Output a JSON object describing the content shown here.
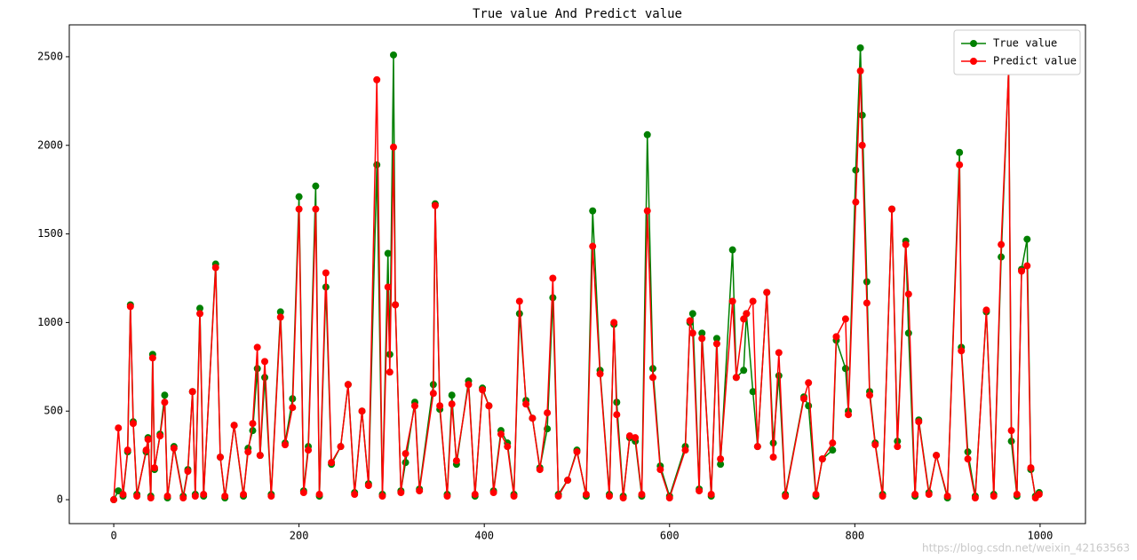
{
  "chart_data": {
    "type": "line",
    "title": "True value And Predict value",
    "x": [
      0,
      5,
      10,
      15,
      18,
      21,
      25,
      35,
      37,
      40,
      42,
      44,
      50,
      55,
      58,
      65,
      75,
      80,
      85,
      88,
      93,
      97,
      110,
      115,
      120,
      130,
      140,
      145,
      150,
      155,
      158,
      163,
      170,
      180,
      185,
      193,
      200,
      205,
      210,
      218,
      222,
      229,
      235,
      245,
      253,
      260,
      268,
      275,
      284,
      290,
      296,
      298,
      302,
      304,
      310,
      315,
      325,
      330,
      345,
      347,
      352,
      360,
      365,
      370,
      383,
      390,
      398,
      405,
      410,
      418,
      425,
      432,
      438,
      445,
      452,
      460,
      468,
      474,
      480,
      490,
      500,
      510,
      517,
      525,
      535,
      540,
      543,
      550,
      557,
      563,
      570,
      576,
      582,
      590,
      600,
      617,
      622,
      625,
      632,
      635,
      645,
      651,
      655,
      668,
      672,
      680,
      683,
      690,
      695,
      705,
      712,
      718,
      725,
      745,
      750,
      758,
      765,
      776,
      780,
      790,
      793,
      801,
      806,
      808,
      813,
      816,
      822,
      830,
      840,
      846,
      855,
      858,
      865,
      869,
      880,
      888,
      900,
      913,
      915,
      922,
      930,
      942,
      950,
      958,
      966,
      969,
      975,
      980,
      986,
      990,
      995,
      999
    ],
    "series": [
      {
        "name": "True value",
        "color": "#008000",
        "values": [
          0,
          50,
          20,
          270,
          1100,
          440,
          30,
          270,
          350,
          20,
          820,
          170,
          370,
          590,
          10,
          300,
          20,
          170,
          610,
          30,
          1080,
          20,
          1330,
          240,
          10,
          420,
          20,
          290,
          390,
          740,
          250,
          690,
          30,
          1060,
          320,
          570,
          1710,
          50,
          300,
          1770,
          20,
          1200,
          200,
          300,
          650,
          40,
          500,
          90,
          1890,
          30,
          1390,
          820,
          2510,
          1100,
          50,
          210,
          550,
          60,
          650,
          1670,
          510,
          30,
          590,
          200,
          670,
          20,
          630,
          530,
          50,
          390,
          320,
          30,
          1050,
          560,
          460,
          180,
          400,
          1140,
          30,
          110,
          280,
          20,
          1630,
          730,
          30,
          990,
          550,
          20,
          350,
          330,
          20,
          2060,
          740,
          190,
          20,
          300,
          1000,
          1050,
          60,
          940,
          20,
          910,
          200,
          1410,
          690,
          730,
          1050,
          610,
          300,
          1170,
          320,
          700,
          30,
          580,
          530,
          20,
          230,
          280,
          900,
          740,
          500,
          1860,
          2550,
          2170,
          1230,
          610,
          320,
          30,
          1640,
          330,
          1460,
          940,
          20,
          450,
          40,
          250,
          10,
          1960,
          860,
          270,
          20,
          1060,
          30,
          1370,
          2420,
          330,
          20,
          1300,
          1470,
          170,
          20,
          40
        ]
      },
      {
        "name": "Predict value",
        "color": "#ff0000",
        "values": [
          0,
          405,
          30,
          280,
          1090,
          430,
          20,
          280,
          340,
          10,
          800,
          180,
          360,
          550,
          20,
          290,
          10,
          160,
          610,
          20,
          1050,
          30,
          1310,
          240,
          20,
          420,
          30,
          270,
          430,
          860,
          250,
          780,
          20,
          1030,
          310,
          520,
          1640,
          40,
          280,
          1640,
          30,
          1280,
          210,
          300,
          650,
          30,
          500,
          80,
          2370,
          20,
          1200,
          720,
          1990,
          1100,
          40,
          260,
          530,
          50,
          600,
          1660,
          530,
          20,
          540,
          220,
          650,
          30,
          620,
          530,
          40,
          370,
          300,
          20,
          1120,
          540,
          460,
          170,
          490,
          1250,
          20,
          110,
          270,
          30,
          1430,
          710,
          20,
          1000,
          480,
          10,
          360,
          350,
          30,
          1630,
          690,
          170,
          10,
          280,
          1010,
          940,
          50,
          910,
          30,
          880,
          230,
          1120,
          690,
          1020,
          1050,
          1120,
          300,
          1170,
          240,
          830,
          20,
          570,
          660,
          30,
          230,
          320,
          920,
          1020,
          480,
          1680,
          2420,
          2000,
          1110,
          590,
          310,
          20,
          1640,
          300,
          1440,
          1160,
          30,
          440,
          30,
          250,
          20,
          1890,
          840,
          230,
          10,
          1070,
          20,
          1440,
          2420,
          390,
          30,
          1290,
          1320,
          180,
          10,
          30
        ]
      }
    ],
    "xlim": [
      -48,
      1049
    ],
    "ylim": [
      -135,
      2680
    ],
    "xticks": [
      0,
      200,
      400,
      600,
      800,
      1000
    ],
    "yticks": [
      0,
      500,
      1000,
      1500,
      2000,
      2500
    ],
    "legend": "upper right",
    "grid": false,
    "watermark": "https://blog.csdn.net/weixin_42163563"
  }
}
